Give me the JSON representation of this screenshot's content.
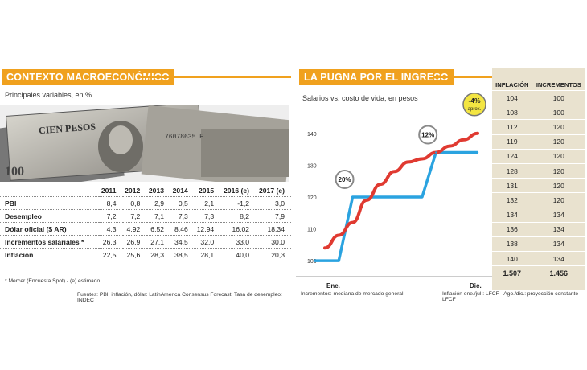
{
  "left": {
    "header": "CONTEXTO MACROECONÓMICO",
    "subtitle": "Principales variables, en %",
    "photo_text": {
      "bill_line1": "CIEN PESOS",
      "bill_serial": "76078635 E",
      "bill_num": "100"
    },
    "columns": [
      "",
      "2011",
      "2012",
      "2013",
      "2014",
      "2015",
      "2016 (e)",
      "2017 (e)"
    ],
    "rows": [
      {
        "label": "PBI",
        "values": [
          "8,4",
          "0,8",
          "2,9",
          "0,5",
          "2,1",
          "-1,2",
          "3,0"
        ]
      },
      {
        "label": "Desempleo",
        "values": [
          "7,2",
          "7,2",
          "7,1",
          "7,3",
          "7,3",
          "8,2",
          "7,9"
        ]
      },
      {
        "label": "Dólar oficial ($ AR)",
        "values": [
          "4,3",
          "4,92",
          "6,52",
          "8,46",
          "12,94",
          "16,02",
          "18,34"
        ]
      },
      {
        "label": "Incrementos salariales *",
        "values": [
          "26,3",
          "26,9",
          "27,1",
          "34,5",
          "32,0",
          "33,0",
          "30,0"
        ]
      },
      {
        "label": "Inflación",
        "values": [
          "22,5",
          "25,6",
          "28,3",
          "38,5",
          "28,1",
          "40,0",
          "20,3"
        ]
      }
    ],
    "footnote": "* Mercer (Encuesta Spot) - (e) estimado",
    "sources": "Fuentes: PBI, inflación, dólar: LatinAmerica Consensus Forecast. Tasa de desempleo: INDEC"
  },
  "right": {
    "header": "LA PUGNA POR EL INGRESO",
    "legend": {
      "inflacion": "INFLACIÓN",
      "incrementos": "INCREMENTOS"
    },
    "table": [
      [
        "104",
        "100"
      ],
      [
        "108",
        "100"
      ],
      [
        "112",
        "120"
      ],
      [
        "119",
        "120"
      ],
      [
        "124",
        "120"
      ],
      [
        "128",
        "120"
      ],
      [
        "131",
        "120"
      ],
      [
        "132",
        "120"
      ],
      [
        "134",
        "134"
      ],
      [
        "136",
        "134"
      ],
      [
        "138",
        "134"
      ],
      [
        "140",
        "134"
      ]
    ],
    "totals": [
      "1.507",
      "1.456"
    ],
    "footer_left": "Incrementos: mediana de mercado general",
    "footer_right": "Inflación ene./jul.: LFCF - Ago./dic.: proyección constante LFCF"
  },
  "colors": {
    "accent": "#f0a11e",
    "inflacion": "#e03a31",
    "incrementos": "#2aa3e0",
    "table_bg": "#e9e2cf",
    "bubble": "#f3e542"
  },
  "chart_data": {
    "type": "line",
    "title": "Salarios vs. costo de vida, en pesos",
    "x_start_label": "Ene.",
    "x_end_label": "Dic.",
    "yticks": [
      100,
      110,
      120,
      130,
      140
    ],
    "ylim": [
      97,
      145
    ],
    "series": [
      {
        "name": "INFLACIÓN",
        "values": [
          104,
          108,
          112,
          119,
          124,
          128,
          131,
          132,
          134,
          136,
          138,
          140
        ]
      },
      {
        "name": "INCREMENTOS",
        "values": [
          100,
          100,
          120,
          120,
          120,
          120,
          120,
          120,
          134,
          134,
          134,
          134
        ]
      }
    ],
    "annotations": [
      {
        "text": "20%",
        "x": 2,
        "y": 120
      },
      {
        "text": "12%",
        "x": 8,
        "y": 134
      },
      {
        "text": "-4%",
        "sub": "aprox.",
        "x": 11,
        "y": 140
      }
    ]
  }
}
